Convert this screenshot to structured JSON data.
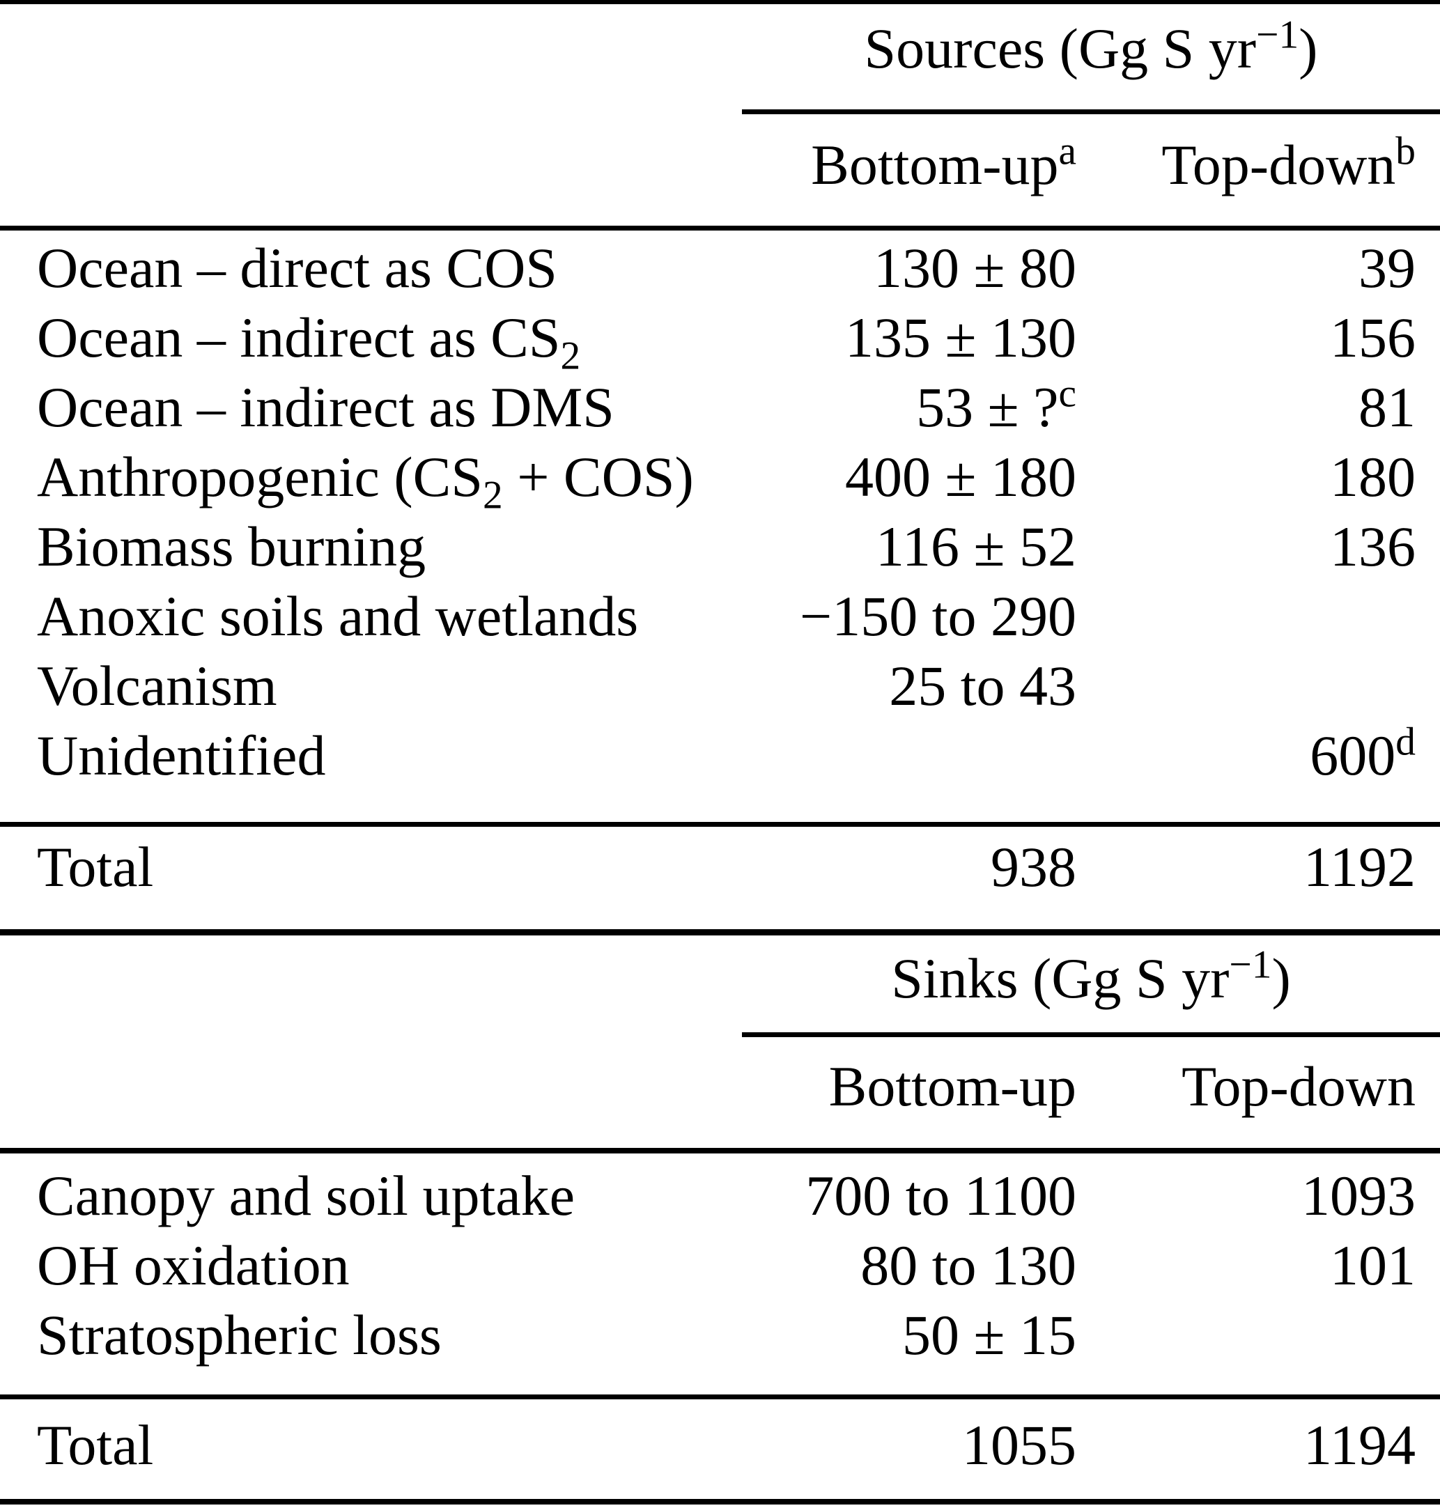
{
  "table": {
    "background_color": "#ffffff",
    "text_color": "#000000",
    "sources": {
      "title_pre": "Sources (Gg S yr",
      "title_sup": "−1",
      "title_post": ")",
      "columns": {
        "bottom_up": "Bottom-up",
        "bottom_up_sup": "a",
        "top_down": "Top-down",
        "top_down_sup": "b"
      },
      "rows": [
        {
          "label_pre": "Ocean – direct as COS",
          "label_sub": "",
          "label_post": "",
          "bottom_up": "130 ± 80",
          "bottom_up_sup": "",
          "top_down": "39",
          "top_down_sup": ""
        },
        {
          "label_pre": "Ocean – indirect as CS",
          "label_sub": "2",
          "label_post": "",
          "bottom_up": "135 ± 130",
          "bottom_up_sup": "",
          "top_down": "156",
          "top_down_sup": ""
        },
        {
          "label_pre": "Ocean – indirect as DMS",
          "label_sub": "",
          "label_post": "",
          "bottom_up": "53 ± ?",
          "bottom_up_sup": "c",
          "top_down": "81",
          "top_down_sup": ""
        },
        {
          "label_pre": "Anthropogenic (CS",
          "label_sub": "2",
          "label_post": " + COS)",
          "bottom_up": "400 ± 180",
          "bottom_up_sup": "",
          "top_down": "180",
          "top_down_sup": ""
        },
        {
          "label_pre": "Biomass burning",
          "label_sub": "",
          "label_post": "",
          "bottom_up": "116 ± 52",
          "bottom_up_sup": "",
          "top_down": "136",
          "top_down_sup": ""
        },
        {
          "label_pre": "Anoxic soils and wetlands",
          "label_sub": "",
          "label_post": "",
          "bottom_up": "−150 to 290",
          "bottom_up_sup": "",
          "top_down": "",
          "top_down_sup": ""
        },
        {
          "label_pre": "Volcanism",
          "label_sub": "",
          "label_post": "",
          "bottom_up": "25 to 43",
          "bottom_up_sup": "",
          "top_down": "",
          "top_down_sup": ""
        },
        {
          "label_pre": "Unidentified",
          "label_sub": "",
          "label_post": "",
          "bottom_up": "",
          "bottom_up_sup": "",
          "top_down": "600",
          "top_down_sup": "d"
        }
      ],
      "total": {
        "label": "Total",
        "bottom_up": "938",
        "top_down": "1192"
      }
    },
    "sinks": {
      "title_pre": "Sinks (Gg S yr",
      "title_sup": "−1",
      "title_post": ")",
      "columns": {
        "bottom_up": "Bottom-up",
        "bottom_up_sup": "",
        "top_down": "Top-down",
        "top_down_sup": ""
      },
      "rows": [
        {
          "label_pre": "Canopy and soil uptake",
          "label_sub": "",
          "label_post": "",
          "bottom_up": "700 to 1100",
          "bottom_up_sup": "",
          "top_down": "1093",
          "top_down_sup": ""
        },
        {
          "label_pre": "OH oxidation",
          "label_sub": "",
          "label_post": "",
          "bottom_up": "80 to 130",
          "bottom_up_sup": "",
          "top_down": "101",
          "top_down_sup": ""
        },
        {
          "label_pre": "Stratospheric loss",
          "label_sub": "",
          "label_post": "",
          "bottom_up": "50 ± 15",
          "bottom_up_sup": "",
          "top_down": "",
          "top_down_sup": ""
        }
      ],
      "total": {
        "label": "Total",
        "bottom_up": "1055",
        "top_down": "1194"
      }
    }
  }
}
